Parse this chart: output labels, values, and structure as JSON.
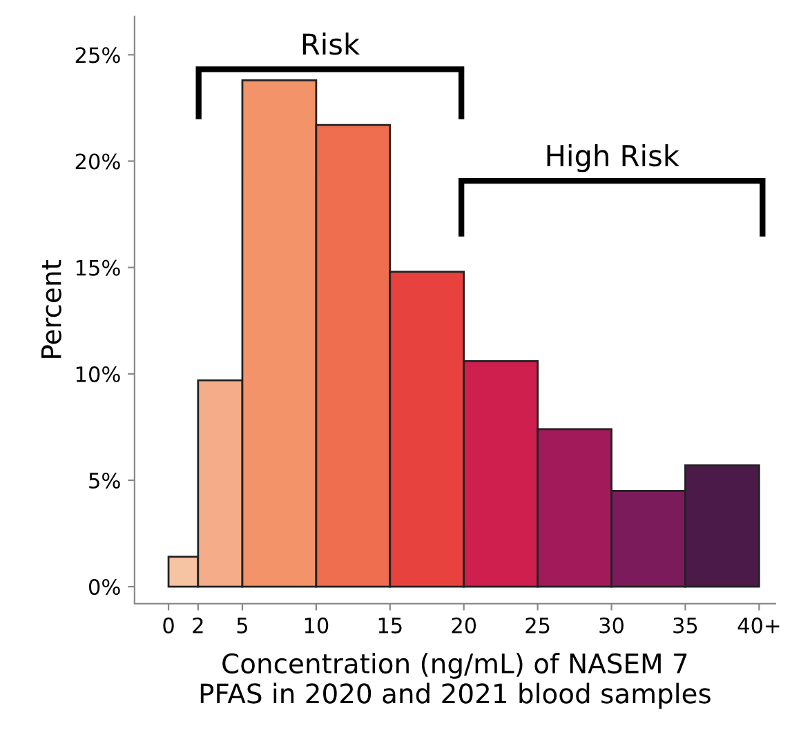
{
  "chart_data": {
    "type": "histogram",
    "xlabel": "Concentration (ng/mL) of NASEM 7\nPFAS in 2020 and 2021 blood samples",
    "ylabel": "Percent",
    "bins": [
      0,
      2,
      5,
      10,
      15,
      20,
      25,
      30,
      35,
      40
    ],
    "values": [
      1.4,
      9.7,
      23.8,
      21.7,
      14.8,
      10.6,
      7.4,
      4.5,
      5.7
    ],
    "colors": [
      "#f6c3a3",
      "#f4ad88",
      "#f3936a",
      "#ef6e4f",
      "#e8423f",
      "#cf1f4f",
      "#a21a5a",
      "#7b1b5b",
      "#4b1a48"
    ],
    "xlim": [
      -2.3,
      41.1
    ],
    "ylim": [
      -0.8,
      26.8
    ],
    "xticks": [
      0,
      2,
      5,
      10,
      15,
      20,
      25,
      30,
      35,
      {
        "value": 40,
        "label": "40+"
      }
    ],
    "yticks": [
      {
        "value": 0,
        "label": "0%"
      },
      {
        "value": 5,
        "label": "5%"
      },
      {
        "value": 10,
        "label": "10%"
      },
      {
        "value": 15,
        "label": "15%"
      },
      {
        "value": 20,
        "label": "20%"
      },
      {
        "value": 25,
        "label": "25%"
      }
    ],
    "annotations": [
      "Risk",
      "High Risk"
    ],
    "grid": false
  }
}
